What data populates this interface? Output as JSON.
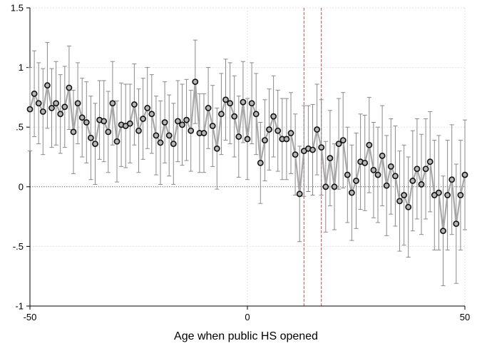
{
  "chart_data": {
    "type": "scatter",
    "title": "",
    "xlabel": "Age when public HS opened",
    "ylabel": "",
    "xlim": [
      -50,
      50
    ],
    "ylim": [
      -1,
      1.5
    ],
    "x_ticks": [
      -50,
      0,
      50
    ],
    "x_tick_labels": [
      "-50",
      "0",
      "50"
    ],
    "y_ticks": [
      -1,
      -0.5,
      0,
      0.5,
      1,
      1.5
    ],
    "y_tick_labels": [
      "-1",
      "-.5",
      "0",
      ".5",
      "1",
      "1.5"
    ],
    "grid": "dotted",
    "reference_line_y": 0,
    "vertical_dashed_lines_x": [
      13,
      17
    ],
    "legend": "none",
    "colors": {
      "marker_fill": "#b5b5b5",
      "marker_edge": "#111111",
      "connect_line": "#a8a8a8",
      "error_bars": "#8a8a8a",
      "dashed_lines": "#c0504d",
      "grid": "#d9d9d9",
      "axis": "#000000"
    },
    "x": [
      -50,
      -49,
      -48,
      -47,
      -46,
      -45,
      -44,
      -43,
      -42,
      -41,
      -40,
      -39,
      -38,
      -37,
      -36,
      -35,
      -34,
      -33,
      -32,
      -31,
      -30,
      -29,
      -28,
      -27,
      -26,
      -25,
      -24,
      -23,
      -22,
      -21,
      -20,
      -19,
      -18,
      -17,
      -16,
      -15,
      -14,
      -13,
      -12,
      -11,
      -10,
      -9,
      -8,
      -7,
      -6,
      -5,
      -4,
      -3,
      -2,
      -1,
      0,
      1,
      2,
      3,
      4,
      5,
      6,
      7,
      8,
      9,
      10,
      11,
      12,
      13,
      14,
      15,
      16,
      17,
      18,
      19,
      20,
      21,
      22,
      23,
      24,
      25,
      26,
      27,
      28,
      29,
      30,
      31,
      32,
      33,
      34,
      35,
      36,
      37,
      38,
      39,
      40,
      41,
      42,
      43,
      44,
      45,
      46,
      47,
      48,
      49,
      50
    ],
    "y": [
      0.65,
      0.78,
      0.7,
      0.63,
      0.85,
      0.66,
      0.7,
      0.61,
      0.67,
      0.83,
      0.46,
      0.7,
      0.58,
      0.54,
      0.41,
      0.36,
      0.56,
      0.55,
      0.46,
      0.7,
      0.38,
      0.52,
      0.51,
      0.53,
      0.69,
      0.47,
      0.57,
      0.66,
      0.61,
      0.43,
      0.37,
      0.54,
      0.43,
      0.36,
      0.55,
      0.52,
      0.56,
      0.47,
      0.88,
      0.45,
      0.45,
      0.66,
      0.51,
      0.32,
      0.61,
      0.73,
      0.7,
      0.59,
      0.42,
      0.71,
      0.4,
      0.7,
      0.61,
      0.2,
      0.39,
      0.48,
      0.59,
      0.47,
      0.4,
      0.4,
      0.45,
      0.27,
      -0.06,
      0.3,
      0.32,
      0.31,
      0.48,
      0.33,
      0.0,
      0.24,
      0.0,
      0.36,
      0.39,
      0.1,
      -0.05,
      0.05,
      0.21,
      0.2,
      0.35,
      0.14,
      0.1,
      0.26,
      0.01,
      0.17,
      0.09,
      -0.12,
      -0.07,
      -0.17,
      0.05,
      0.15,
      0.02,
      0.15,
      0.21,
      -0.07,
      -0.05,
      -0.37,
      -0.07,
      0.06,
      -0.31,
      -0.07,
      0.1
    ],
    "ci_half_width": [
      0.35,
      0.36,
      0.34,
      0.36,
      0.36,
      0.33,
      0.35,
      0.33,
      0.34,
      0.35,
      0.35,
      0.34,
      0.33,
      0.34,
      0.35,
      0.34,
      0.33,
      0.34,
      0.34,
      0.35,
      0.34,
      0.35,
      0.35,
      0.33,
      0.34,
      0.35,
      0.34,
      0.34,
      0.33,
      0.33,
      0.35,
      0.34,
      0.34,
      0.34,
      0.34,
      0.34,
      0.34,
      0.34,
      0.35,
      0.33,
      0.33,
      0.34,
      0.34,
      0.34,
      0.34,
      0.34,
      0.34,
      0.34,
      0.34,
      0.34,
      0.34,
      0.34,
      0.34,
      0.34,
      0.34,
      0.34,
      0.34,
      0.34,
      0.34,
      0.34,
      0.34,
      0.34,
      0.4,
      0.38,
      0.36,
      0.38,
      0.38,
      0.4,
      0.38,
      0.4,
      0.36,
      0.38,
      0.4,
      0.4,
      0.4,
      0.4,
      0.4,
      0.4,
      0.4,
      0.4,
      0.4,
      0.42,
      0.42,
      0.4,
      0.42,
      0.42,
      0.42,
      0.42,
      0.42,
      0.42,
      0.42,
      0.42,
      0.42,
      0.46,
      0.48,
      0.46,
      0.46,
      0.46,
      0.5,
      0.46,
      0.46
    ]
  }
}
